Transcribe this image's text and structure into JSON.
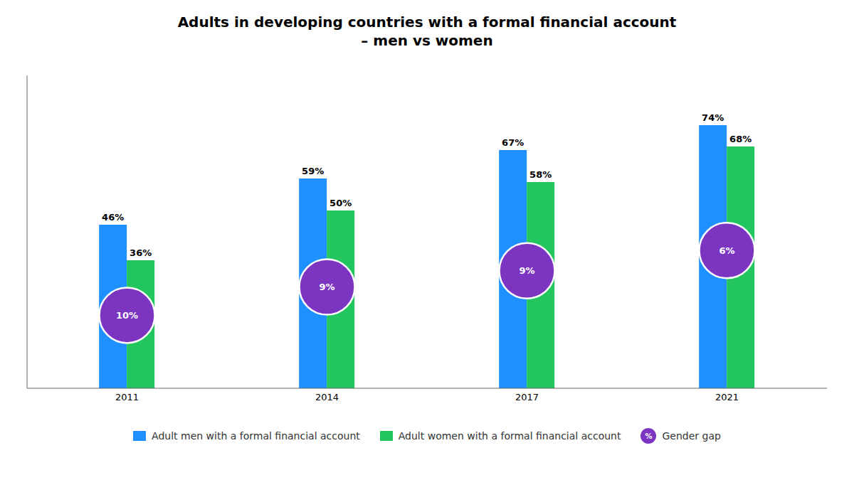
{
  "chart_data": {
    "type": "bar",
    "title": "Adults in developing countries with a formal financial account\n– men vs women",
    "categories": [
      "2011",
      "2014",
      "2017",
      "2021"
    ],
    "series": [
      {
        "name": "Adult men with a formal financial account",
        "color": "#1E90FF",
        "values": [
          46,
          59,
          67,
          74
        ],
        "value_labels": [
          "46%",
          "59%",
          "67%",
          "74%"
        ]
      },
      {
        "name": "Adult women with a formal financial account",
        "color": "#22C55E",
        "values": [
          36,
          50,
          58,
          68
        ],
        "value_labels": [
          "36%",
          "50%",
          "58%",
          "68%"
        ]
      }
    ],
    "gap": {
      "name": "Gender gap",
      "color": "#7B35C1",
      "labels": [
        "10%",
        "9%",
        "9%",
        "6%"
      ],
      "marker_text": "%"
    },
    "ylim": [
      0,
      88
    ],
    "tick_labels": "x",
    "data_labels": true
  }
}
